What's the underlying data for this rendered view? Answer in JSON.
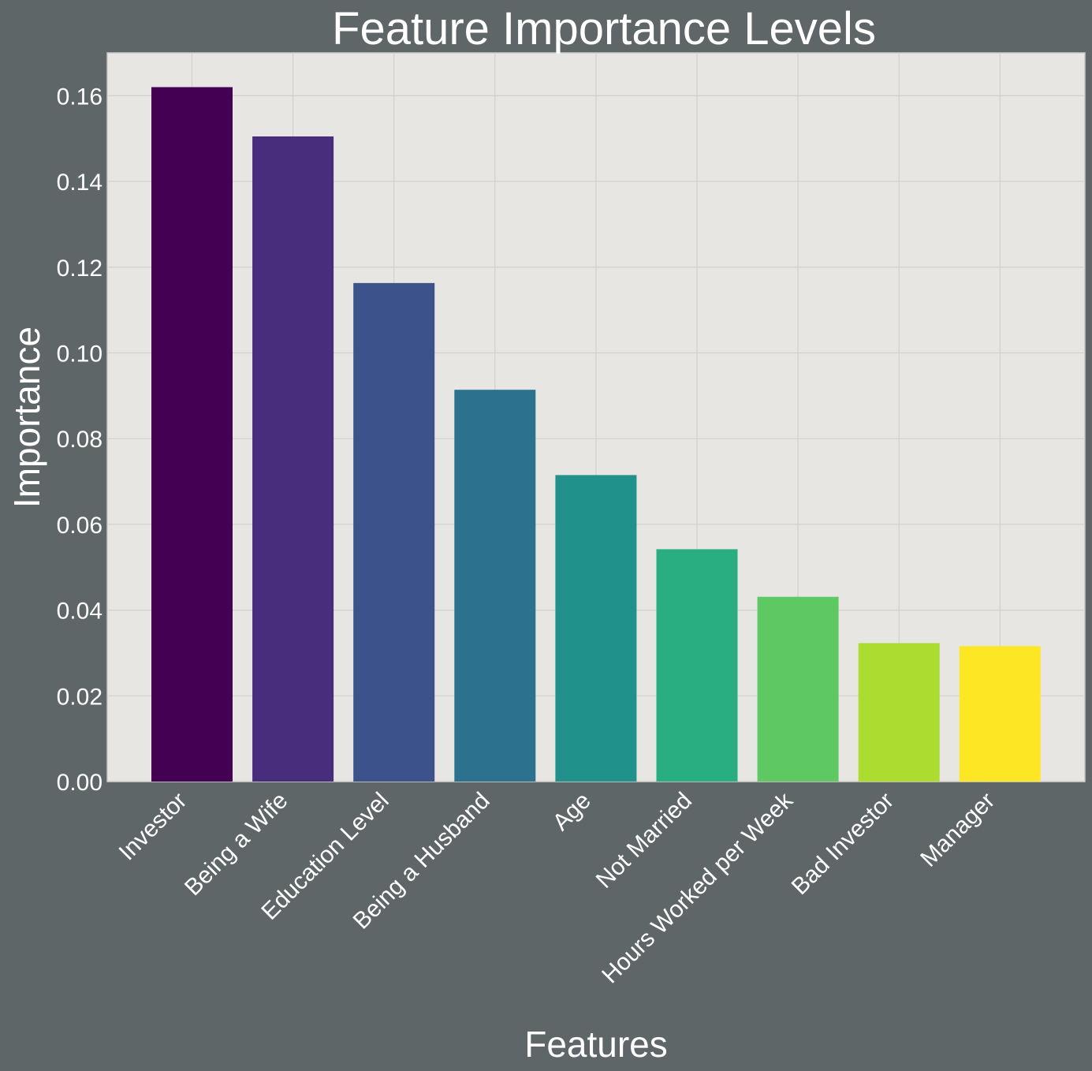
{
  "chart_data": {
    "type": "bar",
    "title": "Feature Importance Levels",
    "xlabel": "Features",
    "ylabel": "Importance",
    "categories": [
      "Investor",
      "Being a Wife",
      "Education Level",
      "Being a Husband",
      "Age",
      "Not Married",
      "Hours Worked per Week",
      "Bad Investor",
      "Manager"
    ],
    "values": [
      0.162,
      0.1505,
      0.1163,
      0.0914,
      0.0715,
      0.0542,
      0.0431,
      0.0323,
      0.0316
    ],
    "colors": [
      "#440154",
      "#472d7b",
      "#3b528b",
      "#2c728e",
      "#21918c",
      "#28ae80",
      "#5ec962",
      "#addc30",
      "#fde725"
    ],
    "ylim": [
      0,
      0.17
    ],
    "yticks": [
      0.0,
      0.02,
      0.04,
      0.06,
      0.08,
      0.1,
      0.12,
      0.14,
      0.16
    ],
    "ytick_labels": [
      "0.00",
      "0.02",
      "0.04",
      "0.06",
      "0.08",
      "0.10",
      "0.12",
      "0.14",
      "0.16"
    ],
    "grid": true,
    "plot_background": "#e8e6e3",
    "figure_background": "#5f6668",
    "grid_color": "#d2d0cd"
  }
}
